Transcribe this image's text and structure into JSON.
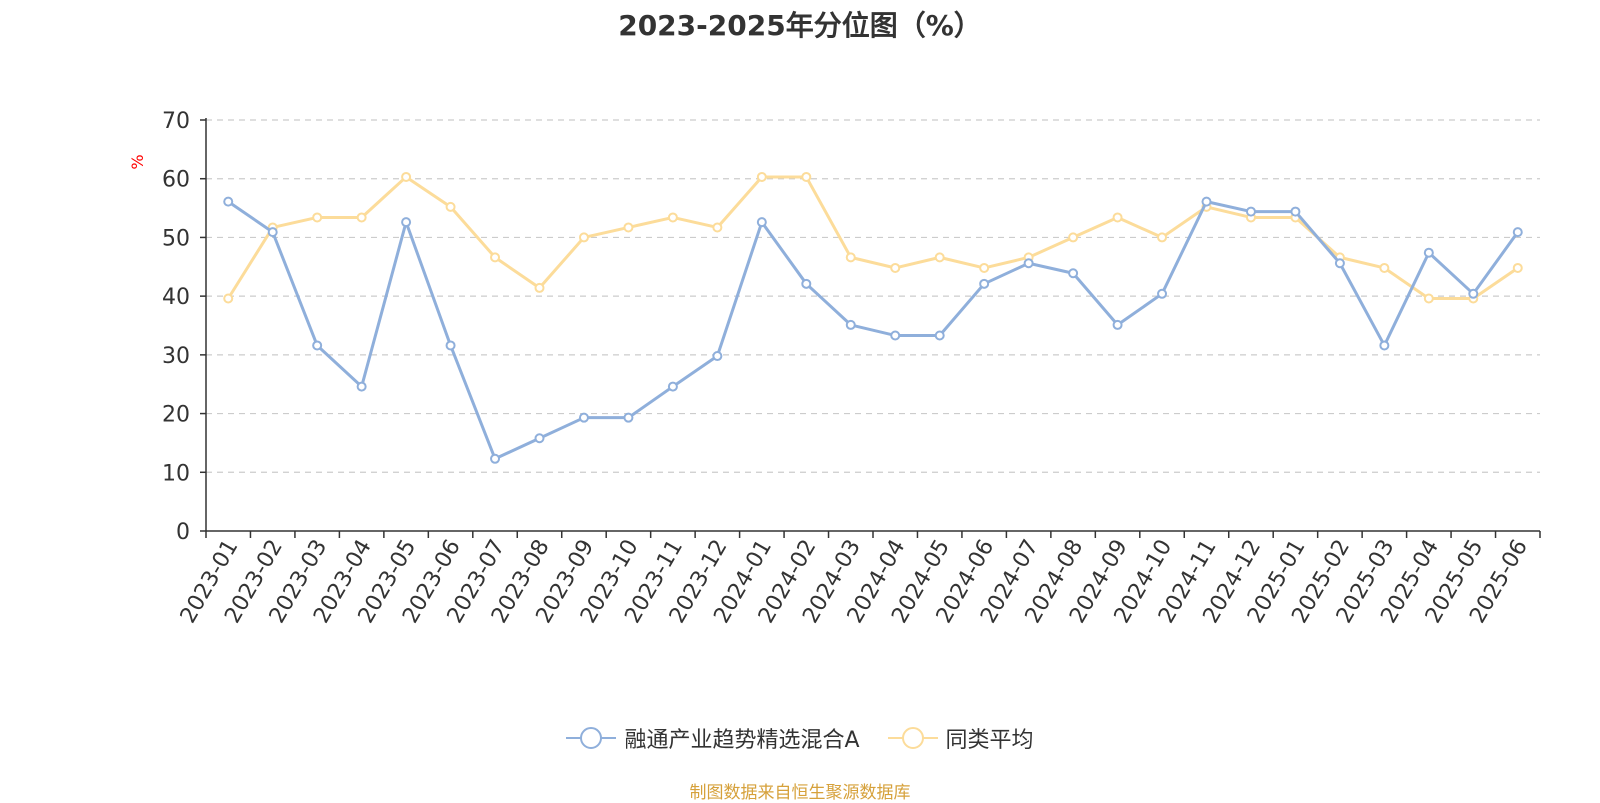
{
  "title": "2023-2025年分位图（%）",
  "footer": "制图数据来自恒生聚源数据库",
  "colors": {
    "series1": "#8fafdb",
    "series2": "#fcdc9a",
    "axis": "#333333",
    "grid": "#cccccc",
    "unit": "#ff0000",
    "footer": "#d6a13b"
  },
  "chart_data": {
    "type": "line",
    "title": "2023-2025年分位图（%）",
    "ylabel": "%",
    "ylim": [
      0,
      70
    ],
    "yticks": [
      0,
      10,
      20,
      30,
      40,
      50,
      60,
      70
    ],
    "grid": true,
    "legend_position": "bottom",
    "categories": [
      "2023-01",
      "2023-02",
      "2023-03",
      "2023-04",
      "2023-05",
      "2023-06",
      "2023-07",
      "2023-08",
      "2023-09",
      "2023-10",
      "2023-11",
      "2023-12",
      "2024-01",
      "2024-02",
      "2024-03",
      "2024-04",
      "2024-05",
      "2024-06",
      "2024-07",
      "2024-08",
      "2024-09",
      "2024-10",
      "2024-11",
      "2024-12",
      "2025-01",
      "2025-02",
      "2025-03",
      "2025-04",
      "2025-05",
      "2025-06"
    ],
    "series": [
      {
        "name": "融通产业趋势精选混合A",
        "values": [
          56.1,
          50.9,
          31.6,
          24.6,
          52.6,
          31.6,
          12.3,
          15.8,
          19.3,
          19.3,
          24.6,
          29.8,
          52.6,
          42.1,
          35.1,
          33.3,
          33.3,
          42.1,
          45.6,
          43.9,
          35.1,
          40.4,
          56.1,
          54.4,
          54.4,
          45.6,
          31.6,
          47.4,
          40.4,
          50.9
        ]
      },
      {
        "name": "同类平均",
        "values": [
          39.6,
          51.7,
          53.4,
          53.4,
          60.3,
          55.2,
          46.6,
          41.4,
          50.0,
          51.7,
          53.4,
          51.7,
          60.3,
          60.3,
          46.6,
          44.8,
          46.6,
          44.8,
          46.6,
          50.0,
          53.4,
          50.0,
          55.2,
          53.4,
          53.4,
          46.6,
          44.8,
          39.6,
          39.6,
          44.8
        ]
      }
    ]
  }
}
